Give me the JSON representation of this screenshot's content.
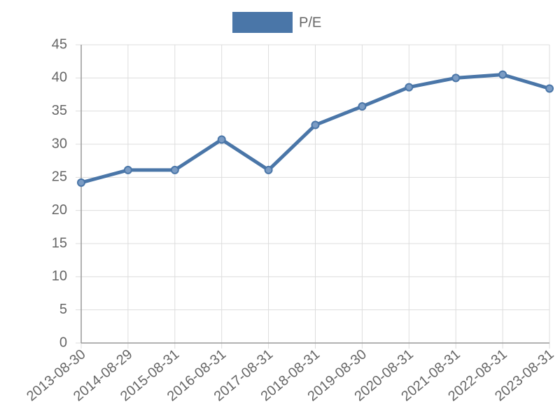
{
  "chart_data": {
    "type": "line",
    "categories": [
      "2013-08-30",
      "2014-08-29",
      "2015-08-31",
      "2016-08-31",
      "2017-08-31",
      "2018-08-31",
      "2019-08-30",
      "2020-08-31",
      "2021-08-31",
      "2022-08-31",
      "2023-08-31"
    ],
    "series": [
      {
        "name": "P/E",
        "color": "#4a76a8",
        "values": [
          24.2,
          26.1,
          26.1,
          30.7,
          26.1,
          32.9,
          35.7,
          38.6,
          40.0,
          40.5,
          38.4
        ]
      }
    ],
    "ylim": [
      0,
      45
    ],
    "yticks": [
      0,
      5,
      10,
      15,
      20,
      25,
      30,
      35,
      40,
      45
    ],
    "grid": true,
    "legend": "top"
  }
}
